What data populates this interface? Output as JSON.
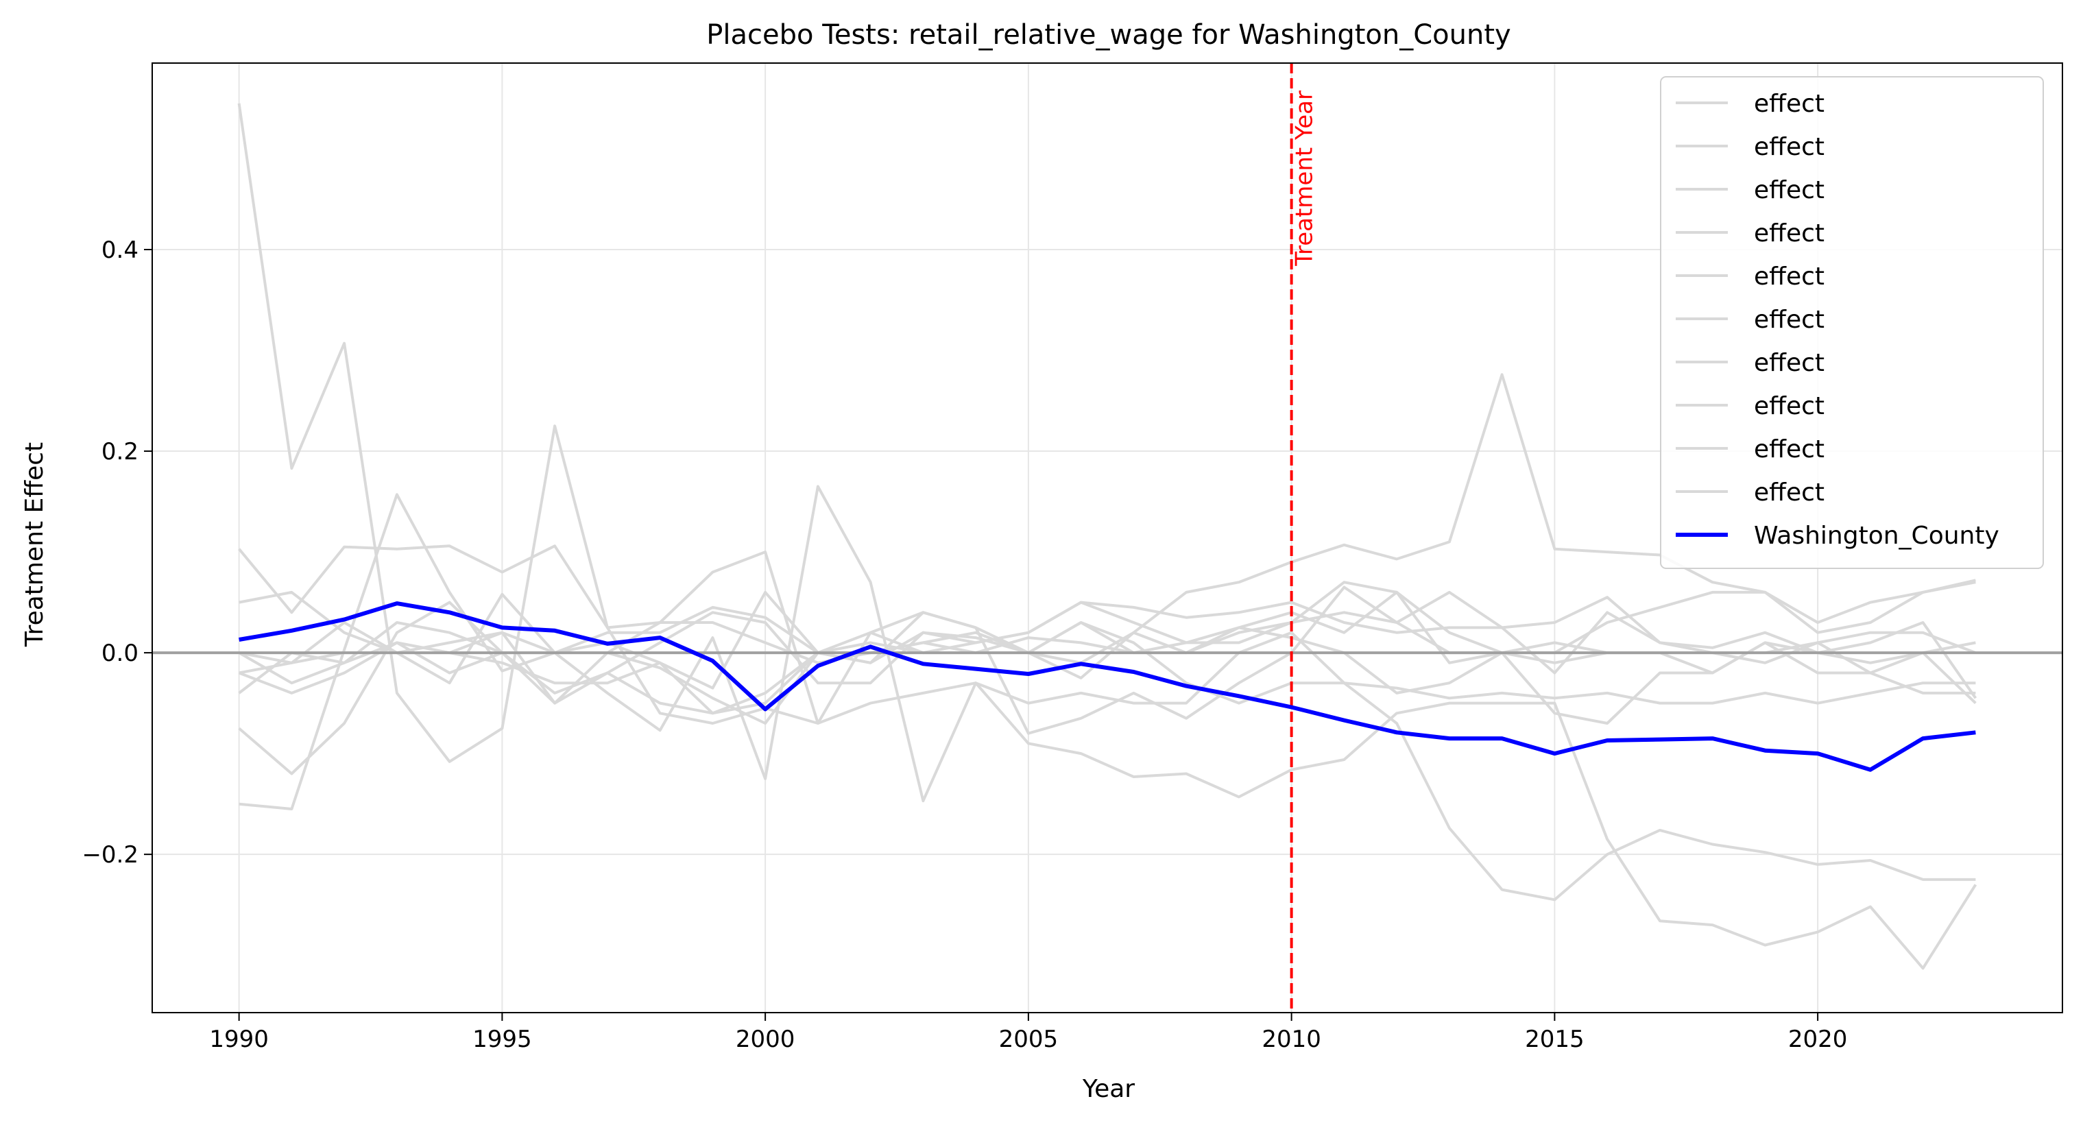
{
  "chart_data": {
    "type": "line",
    "title": "Placebo Tests: retail_relative_wage for Washington_County",
    "xlabel": "Year",
    "ylabel": "Treatment Effect",
    "xlim": [
      1988.35,
      2024.65
    ],
    "ylim": [
      -0.357,
      0.585
    ],
    "x_ticks": [
      1990,
      1995,
      2000,
      2005,
      2010,
      2015,
      2020
    ],
    "y_ticks": [
      -0.2,
      0.0,
      0.2,
      0.4
    ],
    "y_tick_labels": [
      "−0.2",
      "0.0",
      "0.2",
      "0.4"
    ],
    "grid": true,
    "legend_position": "upper right",
    "treatment": {
      "year": 2010,
      "label": "Treatment Year",
      "color": "#ff0000"
    },
    "zero_line": {
      "y": 0,
      "color": "#a0a0a0"
    },
    "colors": {
      "placebo": "#d9d9d9",
      "treated": "#0000ff"
    },
    "x": [
      1990,
      1991,
      1992,
      1993,
      1994,
      1995,
      1996,
      1997,
      1998,
      1999,
      2000,
      2001,
      2002,
      2003,
      2004,
      2005,
      2006,
      2007,
      2008,
      2009,
      2010,
      2011,
      2012,
      2013,
      2014,
      2015,
      2016,
      2017,
      2018,
      2019,
      2020,
      2021,
      2022,
      2023
    ],
    "series": [
      {
        "name": "effect",
        "role": "placebo",
        "values": [
          0.545,
          0.183,
          0.307,
          -0.04,
          -0.108,
          -0.075,
          0.225,
          0.025,
          0.03,
          0.03,
          0.01,
          -0.01,
          0.0,
          0.01,
          0.02,
          0.0,
          -0.025,
          0.02,
          0.06,
          0.07,
          0.09,
          0.107,
          0.093,
          0.11,
          0.276,
          0.103,
          0.1,
          0.097,
          0.07,
          0.06,
          0.03,
          0.05,
          0.06,
          0.072
        ]
      },
      {
        "name": "effect",
        "role": "placebo",
        "values": [
          -0.15,
          -0.155,
          0.003,
          0.157,
          0.06,
          -0.018,
          0.0,
          -0.04,
          -0.077,
          0.015,
          -0.125,
          0.165,
          0.07,
          -0.147,
          -0.03,
          -0.05,
          -0.04,
          -0.05,
          -0.05,
          0.0,
          0.02,
          -0.03,
          -0.07,
          -0.174,
          -0.235,
          -0.245,
          -0.2,
          -0.176,
          -0.19,
          -0.198,
          -0.21,
          -0.206,
          -0.225,
          -0.225
        ]
      },
      {
        "name": "effect",
        "role": "placebo",
        "values": [
          0.103,
          0.04,
          0.105,
          0.103,
          0.106,
          0.08,
          0.106,
          0.025,
          -0.06,
          -0.07,
          -0.055,
          -0.07,
          -0.05,
          -0.04,
          -0.03,
          -0.09,
          -0.1,
          -0.123,
          -0.12,
          -0.143,
          -0.116,
          -0.106,
          -0.06,
          -0.05,
          -0.05,
          -0.05,
          -0.185,
          -0.266,
          -0.27,
          -0.29,
          -0.277,
          -0.252,
          -0.313,
          -0.23
        ]
      },
      {
        "name": "effect",
        "role": "placebo",
        "values": [
          -0.075,
          -0.12,
          -0.07,
          0.02,
          0.05,
          0.0,
          -0.05,
          0.0,
          0.03,
          0.08,
          0.1,
          -0.07,
          0.02,
          0.04,
          0.025,
          -0.08,
          -0.065,
          -0.04,
          -0.065,
          -0.03,
          0.0,
          0.065,
          0.03,
          0.06,
          0.025,
          -0.02,
          0.04,
          0.01,
          0.0,
          -0.01,
          0.01,
          -0.02,
          0.0,
          0.01
        ]
      },
      {
        "name": "effect",
        "role": "placebo",
        "values": [
          0.05,
          0.06,
          0.02,
          0.0,
          -0.03,
          0.058,
          0.0,
          0.02,
          0.02,
          0.045,
          0.035,
          0.0,
          -0.01,
          0.02,
          0.01,
          0.02,
          0.05,
          0.045,
          0.035,
          0.04,
          0.05,
          0.03,
          0.02,
          0.025,
          0.025,
          0.03,
          0.055,
          0.01,
          0.005,
          0.02,
          0.0,
          0.01,
          0.03,
          -0.045
        ]
      },
      {
        "name": "effect",
        "role": "placebo",
        "values": [
          -0.02,
          -0.01,
          0.03,
          0.0,
          0.01,
          0.02,
          -0.05,
          -0.02,
          0.01,
          0.04,
          0.03,
          -0.03,
          -0.03,
          0.02,
          0.015,
          0.0,
          0.03,
          0.01,
          -0.03,
          -0.05,
          -0.03,
          -0.03,
          -0.035,
          -0.045,
          -0.04,
          -0.045,
          -0.04,
          -0.05,
          -0.05,
          -0.04,
          -0.05,
          -0.04,
          -0.03,
          -0.03
        ]
      },
      {
        "name": "effect",
        "role": "placebo",
        "values": [
          0.0,
          -0.03,
          -0.01,
          0.03,
          0.02,
          0.0,
          -0.04,
          -0.02,
          -0.05,
          -0.06,
          -0.04,
          0.0,
          0.02,
          0.0,
          0.0,
          0.0,
          0.03,
          0.0,
          0.0,
          0.025,
          0.04,
          0.02,
          0.06,
          -0.01,
          0.0,
          -0.01,
          0.0,
          0.0,
          -0.02,
          0.01,
          0.0,
          -0.01,
          0.0,
          -0.05
        ]
      },
      {
        "name": "effect",
        "role": "placebo",
        "values": [
          -0.04,
          0.0,
          -0.01,
          0.01,
          -0.02,
          0.0,
          0.0,
          0.01,
          -0.01,
          -0.035,
          0.06,
          0.0,
          -0.01,
          0.04,
          0.025,
          0.0,
          -0.01,
          0.02,
          0.0,
          0.02,
          0.03,
          0.07,
          0.06,
          0.02,
          0.0,
          0.0,
          0.03,
          0.045,
          0.06,
          0.06,
          0.02,
          0.03,
          0.06,
          0.07
        ]
      },
      {
        "name": "effect",
        "role": "placebo",
        "values": [
          0.0,
          -0.01,
          0.0,
          0.0,
          0.0,
          0.02,
          0.0,
          0.0,
          -0.015,
          -0.045,
          -0.07,
          0.0,
          0.0,
          0.01,
          0.0,
          0.015,
          0.01,
          0.0,
          0.01,
          0.025,
          0.015,
          0.0,
          -0.04,
          -0.03,
          0.0,
          -0.06,
          -0.07,
          -0.02,
          -0.02,
          0.01,
          -0.02,
          -0.02,
          -0.04,
          -0.04
        ]
      },
      {
        "name": "effect",
        "role": "placebo",
        "values": [
          -0.02,
          -0.04,
          -0.02,
          0.01,
          0.0,
          -0.01,
          -0.03,
          -0.03,
          -0.01,
          -0.06,
          -0.05,
          0.0,
          0.01,
          0.0,
          0.01,
          0.02,
          0.05,
          0.03,
          0.01,
          0.01,
          0.03,
          0.04,
          0.03,
          0.0,
          0.0,
          0.01,
          0.0,
          0.0,
          0.0,
          0.0,
          0.01,
          0.02,
          0.02,
          0.0
        ]
      },
      {
        "name": "Washington_County",
        "role": "treated",
        "values": [
          0.013,
          0.022,
          0.033,
          0.049,
          0.04,
          0.025,
          0.022,
          0.009,
          0.015,
          -0.008,
          -0.056,
          -0.013,
          0.006,
          -0.011,
          -0.016,
          -0.021,
          -0.011,
          -0.019,
          -0.033,
          -0.043,
          -0.054,
          -0.067,
          -0.079,
          -0.085,
          -0.085,
          -0.1,
          -0.087,
          -0.086,
          -0.085,
          -0.097,
          -0.1,
          -0.116,
          -0.085,
          -0.079
        ]
      }
    ]
  }
}
